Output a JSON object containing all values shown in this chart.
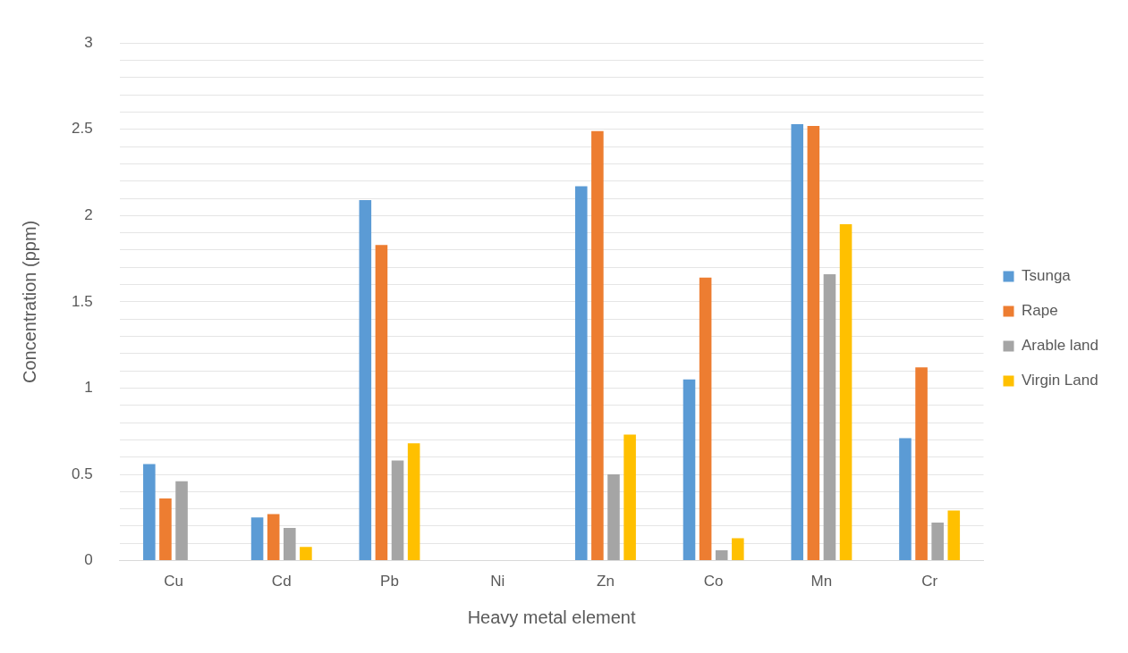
{
  "chart_data": {
    "type": "bar",
    "xlabel": "Heavy metal element",
    "ylabel": "Concentration (ppm)",
    "categories": [
      "Cu",
      "Cd",
      "Pb",
      "Ni",
      "Zn",
      "Co",
      "Mn",
      "Cr"
    ],
    "series": [
      {
        "name": "Tsunga",
        "color": "#5b9bd5",
        "values": [
          0.56,
          0.25,
          2.09,
          0,
          2.17,
          1.05,
          2.53,
          0.71
        ]
      },
      {
        "name": "Rape",
        "color": "#ed7d31",
        "values": [
          0.36,
          0.27,
          1.83,
          0,
          2.49,
          1.64,
          2.52,
          1.12
        ]
      },
      {
        "name": "Arable land",
        "color": "#a5a5a5",
        "values": [
          0.46,
          0.19,
          0.58,
          0,
          0.5,
          0.06,
          1.66,
          0.22
        ]
      },
      {
        "name": "Virgin Land",
        "color": "#ffc000",
        "values": [
          0,
          0.08,
          0.68,
          0,
          0.73,
          0.13,
          1.95,
          0.29
        ]
      }
    ],
    "ylim": [
      0,
      3
    ],
    "yticks": [
      0,
      {
        "value": 0.1,
        "label": null
      },
      {
        "value": 0.2,
        "label": null
      },
      {
        "value": 0.3,
        "label": null
      },
      {
        "value": 0.4,
        "label": null
      },
      {
        "value": 0.5,
        "label": "0.5"
      },
      {
        "value": 0.6,
        "label": null
      },
      {
        "value": 0.7,
        "label": null
      },
      {
        "value": 0.8,
        "label": null
      },
      {
        "value": 0.9,
        "label": null
      },
      1,
      {
        "value": 1.1,
        "label": null
      },
      {
        "value": 1.2,
        "label": null
      },
      {
        "value": 1.3,
        "label": null
      },
      {
        "value": 1.4,
        "label": null
      },
      1.5,
      {
        "value": 1.6,
        "label": null
      },
      {
        "value": 1.7,
        "label": null
      },
      {
        "value": 1.8,
        "label": null
      },
      {
        "value": 1.9,
        "label": null
      },
      2,
      {
        "value": 2.1,
        "label": null
      },
      {
        "value": 2.2,
        "label": null
      },
      {
        "value": 2.3,
        "label": null
      },
      {
        "value": 2.4,
        "label": null
      },
      2.5,
      {
        "value": 2.6,
        "label": null
      },
      {
        "value": 2.7,
        "label": null
      },
      {
        "value": 2.8,
        "label": null
      },
      {
        "value": 2.9,
        "label": null
      },
      3
    ],
    "grid": "y",
    "legend": "right"
  }
}
